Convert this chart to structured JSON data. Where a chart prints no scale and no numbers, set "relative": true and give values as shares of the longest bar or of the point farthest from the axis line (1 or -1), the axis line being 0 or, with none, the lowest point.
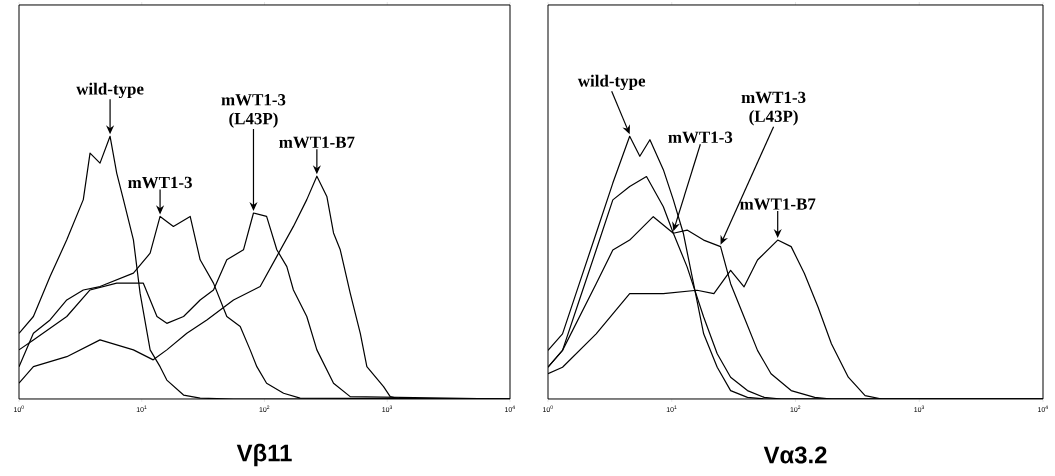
{
  "chart_data": [
    {
      "type": "line",
      "relative": true,
      "log": "x",
      "xlabel": "Vβ11",
      "xlim": [
        1,
        10000
      ],
      "xticks": [
        {
          "value": 1,
          "label": "10$^{0}$"
        },
        {
          "value": 10,
          "label": "10$^{1}$"
        },
        {
          "value": 100,
          "label": "10$^{2}$"
        },
        {
          "value": 1000,
          "label": "10$^{3}$"
        },
        {
          "value": 10000,
          "label": "10$^{4}$"
        }
      ],
      "series": [
        {
          "name": "wild-type",
          "color": "#000000",
          "x": [
            1,
            1.31,
            1.79,
            2.45,
            3.34,
            3.79,
            4.57,
            5.52,
            6.25,
            7.09,
            8.55,
            9.69,
            11.7,
            14.1,
            16.0,
            21.9,
            29.9,
            55.9,
            10000
          ],
          "values": [
            0.25,
            0.314,
            0.466,
            0.606,
            0.759,
            0.936,
            0.898,
            1.0,
            0.86,
            0.759,
            0.606,
            0.403,
            0.187,
            0.123,
            0.072,
            0.015,
            0.003,
            0,
            0
          ]
        },
        {
          "name": "mWT1-3",
          "color": "#000000",
          "x": [
            1,
            1.31,
            1.79,
            2.45,
            3.34,
            4.57,
            8.55,
            11.7,
            14.1,
            18.1,
            24.8,
            29.9,
            38.4,
            49.3,
            63.4,
            76.4,
            86.6,
            104,
            143,
            195,
            10000
          ],
          "values": [
            0.123,
            0.25,
            0.301,
            0.377,
            0.415,
            0.428,
            0.479,
            0.555,
            0.695,
            0.657,
            0.695,
            0.53,
            0.441,
            0.314,
            0.276,
            0.187,
            0.123,
            0.06,
            0.022,
            0.003,
            0
          ]
        },
        {
          "name": "mWT1-3 (L43P)",
          "color": "#000000",
          "x": [
            1,
            1.31,
            2.45,
            3.79,
            6.25,
            10.3,
            13.3,
            16.0,
            21.9,
            29.9,
            38.4,
            49.3,
            67.4,
            81.3,
            104,
            126,
            152,
            172,
            221,
            267,
            365,
            499,
            10000
          ],
          "values": [
            0.187,
            0.225,
            0.314,
            0.415,
            0.441,
            0.441,
            0.314,
            0.288,
            0.314,
            0.377,
            0.415,
            0.53,
            0.568,
            0.708,
            0.695,
            0.568,
            0.504,
            0.415,
            0.314,
            0.187,
            0.06,
            0.009,
            0
          ]
        },
        {
          "name": "mWT1-B7",
          "color": "#000000",
          "x": [
            1,
            1.31,
            2.45,
            4.57,
            8.55,
            12.4,
            16.0,
            23.3,
            33.9,
            55.9,
            92.2,
            126,
            172,
            221,
            267,
            322,
            365,
            414,
            499,
            603,
            682,
            933,
            1057,
            1276,
            10000
          ],
          "values": [
            0.06,
            0.123,
            0.161,
            0.225,
            0.187,
            0.149,
            0.187,
            0.25,
            0.301,
            0.377,
            0.428,
            0.543,
            0.657,
            0.759,
            0.848,
            0.771,
            0.632,
            0.568,
            0.403,
            0.25,
            0.123,
            0.047,
            0.009,
            0,
            0
          ]
        }
      ]
    },
    {
      "type": "line",
      "relative": true,
      "log": "x",
      "xlabel": "Vα3.2",
      "xlim": [
        1,
        10000
      ],
      "xticks": [
        {
          "value": 1,
          "label": "10$^{0}$"
        },
        {
          "value": 10,
          "label": "10$^{1}$"
        },
        {
          "value": 100,
          "label": "10$^{2}$"
        },
        {
          "value": 1000,
          "label": "10$^{3}$"
        },
        {
          "value": 10000,
          "label": "10$^{4}$"
        }
      ],
      "series": [
        {
          "name": "wild-type",
          "color": "#000000",
          "x": [
            1,
            1.31,
            1.79,
            2.45,
            3.34,
            4.57,
            5.52,
            6.66,
            8.55,
            10.3,
            12.4,
            15.0,
            18.1,
            23.3,
            29.9,
            40.9,
            55.9,
            10000
          ],
          "values": [
            0.185,
            0.248,
            0.439,
            0.631,
            0.822,
            1.0,
            0.924,
            0.987,
            0.873,
            0.758,
            0.631,
            0.439,
            0.248,
            0.121,
            0.032,
            0.006,
            0,
            0
          ]
        },
        {
          "name": "mWT1-3",
          "color": "#000000",
          "x": [
            1,
            1.31,
            1.79,
            2.45,
            3.34,
            4.57,
            6.25,
            8.55,
            10.3,
            13.3,
            18.1,
            23.3,
            29.9,
            40.9,
            55.9,
            76.4,
            10000
          ],
          "values": [
            0.121,
            0.185,
            0.376,
            0.567,
            0.758,
            0.809,
            0.847,
            0.732,
            0.631,
            0.503,
            0.312,
            0.172,
            0.083,
            0.032,
            0.006,
            0,
            0
          ]
        },
        {
          "name": "mWT1-3 (L43P)",
          "color": "#000000",
          "x": [
            1,
            1.31,
            2.45,
            3.34,
            4.57,
            7.09,
            10.3,
            13.3,
            18.1,
            24.8,
            29.9,
            38.4,
            49.3,
            63.4,
            92.2,
            143,
            195,
            10000
          ],
          "values": [
            0.121,
            0.185,
            0.439,
            0.567,
            0.605,
            0.694,
            0.631,
            0.643,
            0.605,
            0.58,
            0.439,
            0.312,
            0.185,
            0.096,
            0.032,
            0.006,
            0,
            0
          ]
        },
        {
          "name": "mWT1-B7",
          "color": "#000000",
          "x": [
            1,
            1.31,
            2.45,
            4.57,
            8.55,
            16.0,
            21.9,
            29.9,
            38.4,
            49.3,
            71.8,
            92.2,
            118,
            152,
            195,
            267,
            365,
            499,
            10000
          ],
          "values": [
            0.096,
            0.121,
            0.248,
            0.401,
            0.401,
            0.414,
            0.401,
            0.49,
            0.427,
            0.529,
            0.605,
            0.58,
            0.478,
            0.35,
            0.21,
            0.083,
            0.013,
            0,
            0
          ]
        }
      ]
    }
  ]
}
